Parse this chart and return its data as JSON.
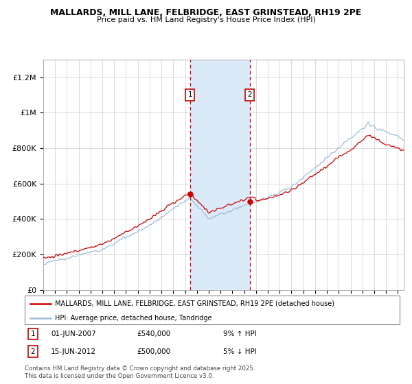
{
  "title": "MALLARDS, MILL LANE, FELBRIDGE, EAST GRINSTEAD, RH19 2PE",
  "subtitle": "Price paid vs. HM Land Registry's House Price Index (HPI)",
  "ylim": [
    0,
    1300000
  ],
  "yticks": [
    0,
    200000,
    400000,
    600000,
    800000,
    1000000,
    1200000
  ],
  "ytick_labels": [
    "£0",
    "£200K",
    "£400K",
    "£600K",
    "£800K",
    "£1M",
    "£1.2M"
  ],
  "sale1_date": 2007.42,
  "sale1_price": 540000,
  "sale1_label": "1",
  "sale1_text": "01-JUN-2007",
  "sale1_pct": "9% ↑ HPI",
  "sale2_date": 2012.46,
  "sale2_price": 500000,
  "sale2_label": "2",
  "sale2_text": "15-JUN-2012",
  "sale2_pct": "5% ↓ HPI",
  "hpi_line_color": "#a0bcd8",
  "price_line_color": "#cc0000",
  "sale_marker_color": "#cc0000",
  "shade_color": "#daeaf8",
  "dashed_line_color": "#cc0000",
  "legend_line1": "MALLARDS, MILL LANE, FELBRIDGE, EAST GRINSTEAD, RH19 2PE (detached house)",
  "legend_line2": "HPI: Average price, detached house, Tandridge",
  "footer": "Contains HM Land Registry data © Crown copyright and database right 2025.\nThis data is licensed under the Open Government Licence v3.0.",
  "background_color": "#ffffff",
  "grid_color": "#cccccc"
}
